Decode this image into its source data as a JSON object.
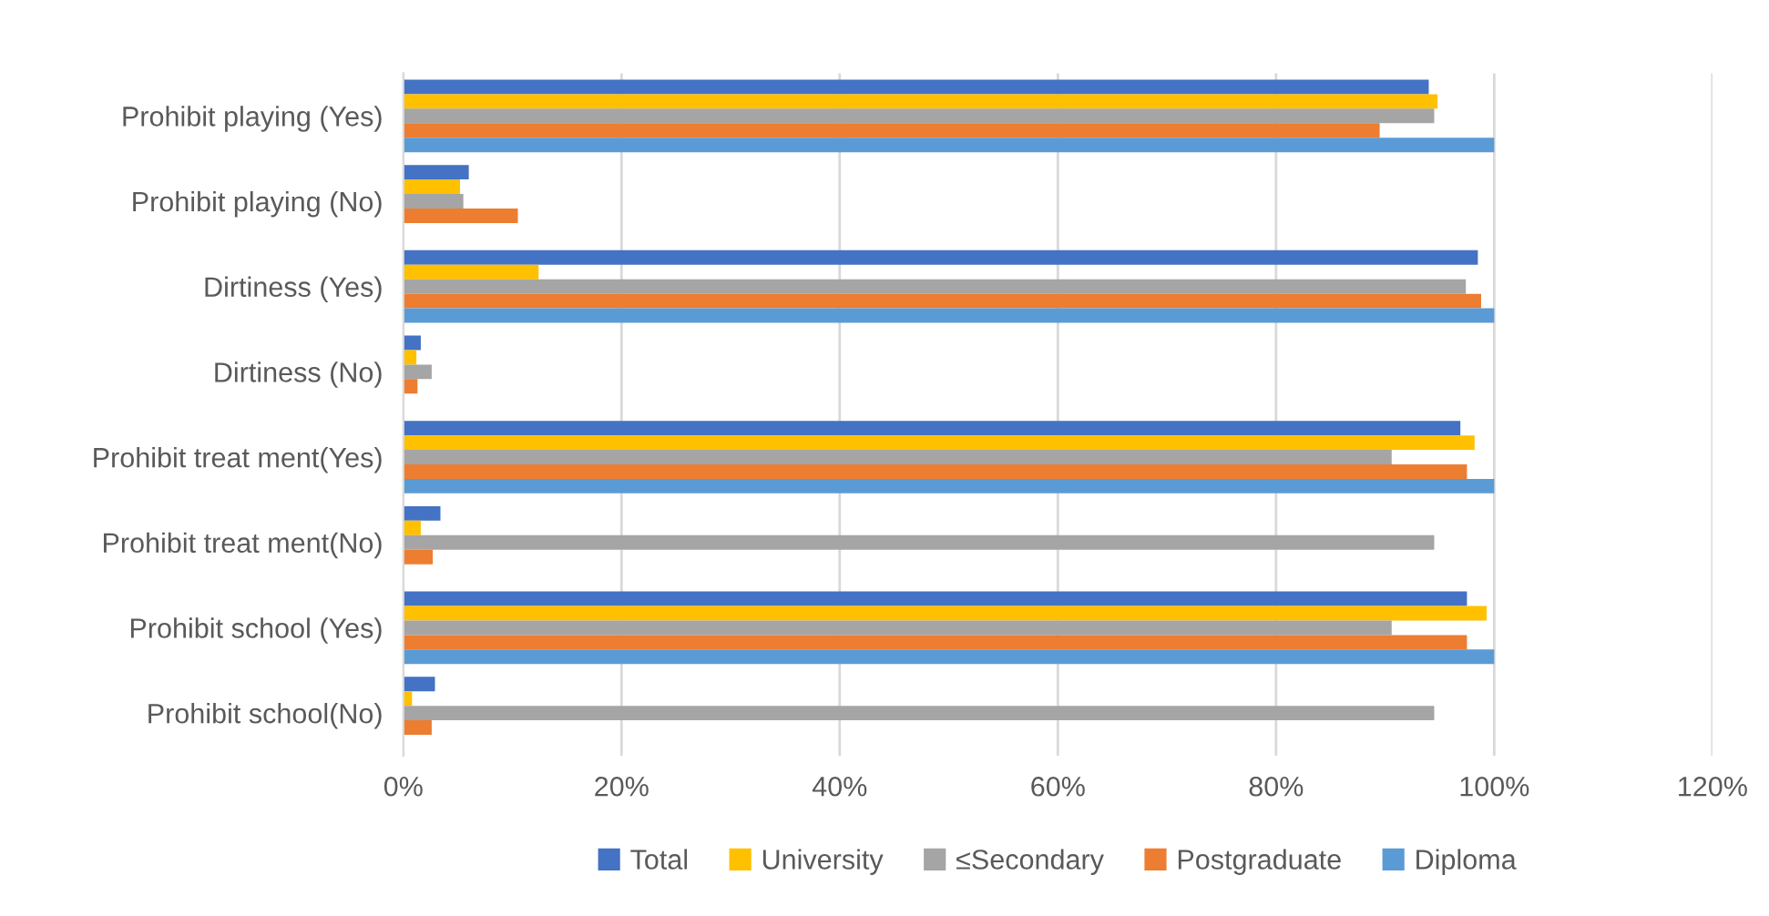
{
  "chart_data": {
    "type": "bar",
    "orientation": "horizontal",
    "categories": [
      "Prohibit playing (Yes)",
      "Prohibit playing (No)",
      "Dirtiness (Yes)",
      "Dirtiness (No)",
      "Prohibit treat ment(Yes)",
      "Prohibit treat ment(No)",
      "Prohibit school (Yes)",
      "Prohibit school(No)"
    ],
    "series": [
      {
        "name": "Total",
        "color": "#4472c4",
        "values": [
          94.0,
          6.0,
          98.5,
          1.6,
          96.9,
          3.4,
          97.5,
          2.9
        ]
      },
      {
        "name": "University",
        "color": "#ffc000",
        "values": [
          94.8,
          5.2,
          12.4,
          1.2,
          98.2,
          1.6,
          99.3,
          0.8
        ]
      },
      {
        "name": "≤Secondary",
        "color": "#a5a5a5",
        "values": [
          94.5,
          5.5,
          97.4,
          2.6,
          90.6,
          94.5,
          90.6,
          94.5
        ]
      },
      {
        "name": "Postgraduate",
        "color": "#ed7d31",
        "values": [
          89.5,
          10.5,
          98.8,
          1.3,
          97.5,
          2.7,
          97.5,
          2.6
        ]
      },
      {
        "name": "Diploma",
        "color": "#5b9bd5",
        "values": [
          100,
          0,
          100,
          0,
          100,
          0,
          100,
          0
        ]
      }
    ],
    "xlim": [
      0,
      120
    ],
    "xticks": [
      {
        "value": 0,
        "label": "0%"
      },
      {
        "value": 20,
        "label": "20%"
      },
      {
        "value": 40,
        "label": "40%"
      },
      {
        "value": 60,
        "label": "60%"
      },
      {
        "value": 80,
        "label": "80%"
      },
      {
        "value": 100,
        "label": "100%"
      },
      {
        "value": 120,
        "label": "120%"
      }
    ],
    "grid": "x",
    "legend": "bottom"
  }
}
